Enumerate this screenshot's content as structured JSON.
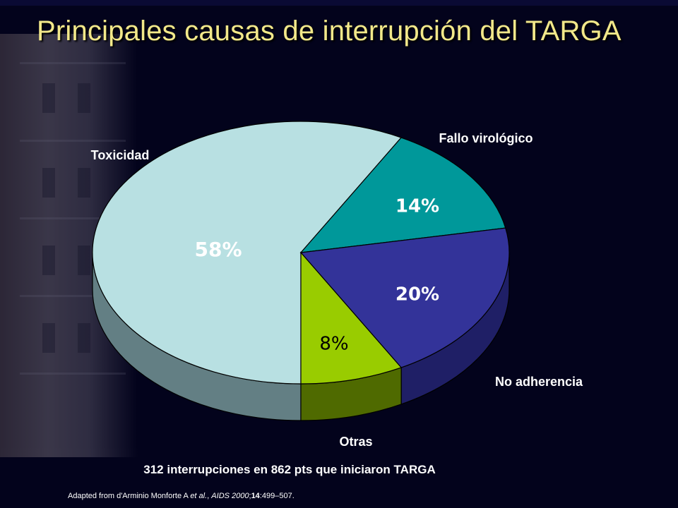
{
  "title": "Principales causas de interrupción del TARGA",
  "chart_data": {
    "type": "pie",
    "slices": [
      {
        "label": "Toxicidad",
        "value": 58,
        "value_label": "58%",
        "color": "#b8e0e2",
        "side_color": "#637f84"
      },
      {
        "label": "Fallo virológico",
        "value": 14,
        "value_label": "14%",
        "color": "#00989a",
        "side_color": "#006a6c"
      },
      {
        "label": "No adherencia",
        "value": 20,
        "value_label": "20%",
        "color": "#333399",
        "side_color": "#1f1f66"
      },
      {
        "label": "Otras",
        "value": 8,
        "value_label": "8%",
        "color": "#99cc00",
        "side_color": "#4f6a00"
      }
    ]
  },
  "footnote": "312 interrupciones en 862 pts que iniciaron TARGA",
  "source": "Adapted from d'Arminio Monforte A et al., AIDS 2000;14:499–507."
}
